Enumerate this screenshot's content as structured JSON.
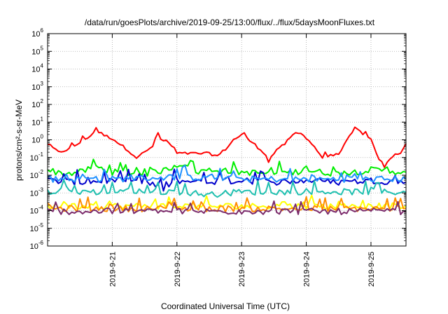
{
  "chart_data": {
    "type": "line",
    "title": "/data/run/goesPlots/archive/2019-09-25/13:00/flux/../flux/5daysMoonFluxes.txt",
    "xlabel": "Coordinated Universal Time (UTC)",
    "ylabel": "protons/cm²-s-sr-MeV",
    "y_scale": "log",
    "ylim_exp": [
      -6,
      6
    ],
    "y_tick_exponents": [
      -6,
      -5,
      -4,
      -3,
      -2,
      -1,
      0,
      1,
      2,
      3,
      4,
      5,
      6
    ],
    "xlim": [
      "2019-09-20T00:00",
      "2019-09-25T13:00"
    ],
    "x_ticks": [
      {
        "label": "2019-9-21",
        "time": "2019-09-21T00:00"
      },
      {
        "label": "2019-9-22",
        "time": "2019-09-22T00:00"
      },
      {
        "label": "2019-9-23",
        "time": "2019-09-23T00:00"
      },
      {
        "label": "2019-9-24",
        "time": "2019-09-24T00:00"
      },
      {
        "label": "2019-9-25",
        "time": "2019-09-25T00:00"
      }
    ],
    "grid": true,
    "series": [
      {
        "color": "#ff0000",
        "points": [
          [
            "2019-09-20T00:00",
            0.6
          ],
          [
            "2019-09-20T04:00",
            0.2
          ],
          [
            "2019-09-20T08:00",
            0.3
          ],
          [
            "2019-09-20T12:00",
            0.7
          ],
          [
            "2019-09-20T16:00",
            1.8
          ],
          [
            "2019-09-20T18:00",
            3.5
          ],
          [
            "2019-09-20T21:00",
            1.8
          ],
          [
            "2019-09-21T00:00",
            1.2
          ],
          [
            "2019-09-21T06:00",
            0.25
          ],
          [
            "2019-09-21T09:00",
            0.1
          ],
          [
            "2019-09-21T13:00",
            0.25
          ],
          [
            "2019-09-21T15:00",
            0.45
          ],
          [
            "2019-09-21T17:00",
            2.5
          ],
          [
            "2019-09-21T18:00",
            0.7
          ],
          [
            "2019-09-21T20:00",
            1.0
          ],
          [
            "2019-09-21T22:00",
            0.4
          ],
          [
            "2019-09-22T00:00",
            0.17
          ],
          [
            "2019-09-22T12:00",
            0.17
          ],
          [
            "2019-09-22T15:00",
            0.12
          ],
          [
            "2019-09-22T18:00",
            0.3
          ],
          [
            "2019-09-22T21:00",
            1.0
          ],
          [
            "2019-09-23T00:00",
            2.0
          ],
          [
            "2019-09-23T04:00",
            0.7
          ],
          [
            "2019-09-23T09:00",
            0.15
          ],
          [
            "2019-09-23T10:00",
            0.05
          ],
          [
            "2019-09-23T11:00",
            0.12
          ],
          [
            "2019-09-23T16:00",
            0.6
          ],
          [
            "2019-09-23T20:00",
            2.5
          ],
          [
            "2019-09-23T23:00",
            2.0
          ],
          [
            "2019-09-24T03:00",
            0.4
          ],
          [
            "2019-09-24T06:00",
            0.1
          ],
          [
            "2019-09-24T12:00",
            0.15
          ],
          [
            "2019-09-24T18:00",
            4.5
          ],
          [
            "2019-09-24T20:00",
            3.0
          ],
          [
            "2019-09-25T00:00",
            1.0
          ],
          [
            "2019-09-25T02:00",
            0.15
          ],
          [
            "2019-09-25T05:00",
            0.03
          ],
          [
            "2019-09-25T08:00",
            0.12
          ],
          [
            "2019-09-25T11:00",
            0.2
          ],
          [
            "2019-09-25T13:00",
            0.6
          ]
        ]
      },
      {
        "color": "#00ee00",
        "points": [
          [
            "2019-09-20T00:00",
            0.02
          ],
          [
            "2019-09-20T06:00",
            0.012
          ],
          [
            "2019-09-20T12:00",
            0.015
          ],
          [
            "2019-09-20T18:00",
            0.03
          ],
          [
            "2019-09-21T00:00",
            0.015
          ],
          [
            "2019-09-21T12:00",
            0.012
          ],
          [
            "2019-09-21T20:00",
            0.02
          ],
          [
            "2019-09-22T00:00",
            0.04
          ],
          [
            "2019-09-22T06:00",
            0.05
          ],
          [
            "2019-09-22T07:00",
            0.015
          ],
          [
            "2019-09-22T12:00",
            0.02
          ],
          [
            "2019-09-23T00:00",
            0.015
          ],
          [
            "2019-09-23T12:00",
            0.012
          ],
          [
            "2019-09-24T00:00",
            0.018
          ],
          [
            "2019-09-24T12:00",
            0.012
          ],
          [
            "2019-09-25T00:00",
            0.02
          ],
          [
            "2019-09-25T13:00",
            0.015
          ]
        ]
      },
      {
        "color": "#0000cc",
        "points": [
          [
            "2019-09-20T00:00",
            0.005
          ],
          [
            "2019-09-20T12:00",
            0.004
          ],
          [
            "2019-09-21T00:00",
            0.005
          ],
          [
            "2019-09-21T12:00",
            0.004
          ],
          [
            "2019-09-21T20:00",
            0.0015
          ],
          [
            "2019-09-21T23:00",
            0.005
          ],
          [
            "2019-09-22T12:00",
            0.004
          ],
          [
            "2019-09-23T00:00",
            0.005
          ],
          [
            "2019-09-23T12:00",
            0.004
          ],
          [
            "2019-09-24T00:00",
            0.005
          ],
          [
            "2019-09-24T12:00",
            0.004
          ],
          [
            "2019-09-25T00:00",
            0.005
          ],
          [
            "2019-09-25T13:00",
            0.004
          ]
        ]
      },
      {
        "color": "#1e90ff",
        "points": [
          [
            "2019-09-20T00:00",
            0.006
          ],
          [
            "2019-09-21T00:00",
            0.006
          ],
          [
            "2019-09-22T00:00",
            0.008
          ],
          [
            "2019-09-23T00:00",
            0.006
          ],
          [
            "2019-09-24T00:00",
            0.006
          ],
          [
            "2019-09-25T13:00",
            0.006
          ]
        ]
      },
      {
        "color": "#20c0b0",
        "points": [
          [
            "2019-09-20T00:00",
            0.0012
          ],
          [
            "2019-09-21T00:00",
            0.0011
          ],
          [
            "2019-09-22T00:00",
            0.0012
          ],
          [
            "2019-09-22T12:00",
            0.0008
          ],
          [
            "2019-09-23T00:00",
            0.0011
          ],
          [
            "2019-09-24T00:00",
            0.0012
          ],
          [
            "2019-09-25T13:00",
            0.0011
          ]
        ]
      },
      {
        "color": "#ffff00",
        "points": [
          [
            "2019-09-20T00:00",
            0.00018
          ],
          [
            "2019-09-21T00:00",
            0.00018
          ],
          [
            "2019-09-22T00:00",
            0.00018
          ],
          [
            "2019-09-23T00:00",
            0.00018
          ],
          [
            "2019-09-24T00:00",
            0.00018
          ],
          [
            "2019-09-25T13:00",
            0.00018
          ]
        ]
      },
      {
        "color": "#ff8c00",
        "points": [
          [
            "2019-09-20T00:00",
            0.00013
          ],
          [
            "2019-09-21T00:00",
            0.00013
          ],
          [
            "2019-09-22T00:00",
            0.00013
          ],
          [
            "2019-09-23T00:00",
            0.00013
          ],
          [
            "2019-09-24T00:00",
            0.00013
          ],
          [
            "2019-09-25T13:00",
            0.00013
          ]
        ]
      },
      {
        "color": "#7b2a6b",
        "points": [
          [
            "2019-09-20T00:00",
            9e-05
          ],
          [
            "2019-09-21T00:00",
            9e-05
          ],
          [
            "2019-09-22T00:00",
            9e-05
          ],
          [
            "2019-09-23T00:00",
            9e-05
          ],
          [
            "2019-09-24T00:00",
            9e-05
          ],
          [
            "2019-09-25T13:00",
            9e-05
          ]
        ]
      }
    ]
  }
}
